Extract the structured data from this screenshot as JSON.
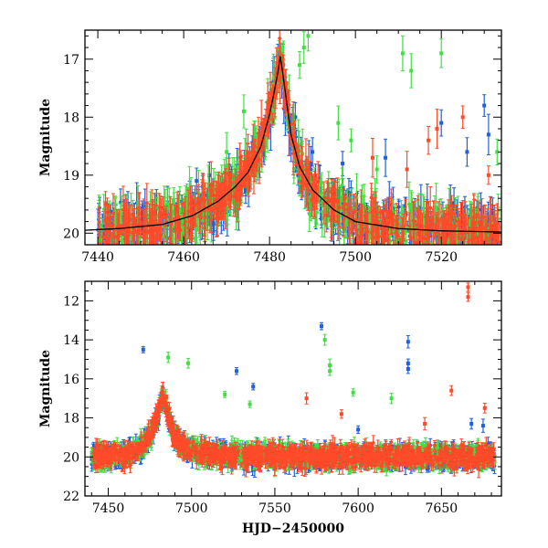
{
  "chart_data": [
    {
      "type": "scatter",
      "title": "",
      "xlabel": "",
      "ylabel": "Magnitude",
      "xlim": [
        7437,
        7534
      ],
      "ylim": [
        20.2,
        16.5
      ],
      "y_inverted": true,
      "grid": false,
      "x_ticks": [
        7440,
        7460,
        7480,
        7500,
        7520
      ],
      "y_ticks": [
        17,
        18,
        19,
        20
      ],
      "colors": {
        "blue": "#1f5fe0",
        "green": "#44dd44",
        "red": "#ff4a2a",
        "model": "#000000"
      },
      "model_curve": {
        "x": [
          7437,
          7445,
          7455,
          7462,
          7468,
          7472,
          7475,
          7478,
          7480,
          7481,
          7482,
          7482.5,
          7483,
          7484,
          7485,
          7487,
          7490,
          7495,
          7500,
          7510,
          7520,
          7534
        ],
        "y": [
          19.95,
          19.92,
          19.85,
          19.7,
          19.45,
          19.2,
          18.95,
          18.5,
          17.95,
          17.6,
          17.2,
          16.95,
          17.2,
          17.75,
          18.3,
          18.85,
          19.25,
          19.6,
          19.8,
          19.92,
          19.96,
          19.98
        ]
      },
      "series": [
        {
          "color": "blue",
          "band": 0.55,
          "outliers": [
            [
              7463,
              19.1
            ],
            [
              7466,
              19.0
            ],
            [
              7486,
              18.0
            ],
            [
              7490,
              18.6
            ],
            [
              7497,
              18.8
            ],
            [
              7507,
              18.7
            ],
            [
              7520,
              18.1
            ],
            [
              7526,
              18.6
            ],
            [
              7530,
              17.8
            ],
            [
              7531,
              18.3
            ]
          ]
        },
        {
          "color": "green",
          "band": 0.6,
          "outliers": [
            [
              7470,
              18.6
            ],
            [
              7474,
              17.9
            ],
            [
              7479,
              18.4
            ],
            [
              7487,
              17.1
            ],
            [
              7488,
              16.8
            ],
            [
              7489,
              16.6
            ],
            [
              7496,
              18.1
            ],
            [
              7499,
              18.4
            ],
            [
              7505,
              18.9
            ],
            [
              7511,
              16.9
            ],
            [
              7513,
              17.2
            ],
            [
              7520,
              16.9
            ],
            [
              7533,
              18.6
            ]
          ]
        },
        {
          "color": "red",
          "band": 0.5,
          "outliers": [
            [
              7504,
              18.7
            ],
            [
              7512,
              18.9
            ],
            [
              7517,
              18.4
            ],
            [
              7519,
              18.2
            ],
            [
              7525,
              18.0
            ],
            [
              7531,
              19.0
            ]
          ]
        }
      ]
    },
    {
      "type": "scatter",
      "title": "",
      "xlabel": "HJD−2450000",
      "ylabel": "Magnitude",
      "xlim": [
        7436,
        7686
      ],
      "ylim": [
        22,
        11
      ],
      "y_inverted": true,
      "grid": false,
      "x_ticks": [
        7450,
        7500,
        7550,
        7600,
        7650
      ],
      "y_ticks": [
        12,
        14,
        16,
        18,
        20,
        22
      ],
      "colors": {
        "blue": "#1f5fe0",
        "green": "#44dd44",
        "red": "#ff4a2a"
      },
      "model_curve": {
        "x": [
          7440,
          7460,
          7470,
          7476,
          7480,
          7482,
          7483,
          7485,
          7488,
          7495,
          7510,
          7550,
          7680
        ],
        "y": [
          20.0,
          19.9,
          19.5,
          18.8,
          17.8,
          17.0,
          16.8,
          17.5,
          18.6,
          19.5,
          19.9,
          20.0,
          20.0
        ]
      },
      "series": [
        {
          "color": "blue",
          "band": 0.8,
          "outliers": [
            [
              7471,
              14.5
            ],
            [
              7527,
              15.6
            ],
            [
              7537,
              16.4
            ],
            [
              7578,
              13.3
            ],
            [
              7630,
              14.1
            ],
            [
              7630,
              15.2
            ],
            [
              7630,
              15.5
            ],
            [
              7675,
              18.4
            ],
            [
              7668,
              18.3
            ],
            [
              7600,
              18.6
            ]
          ]
        },
        {
          "color": "green",
          "band": 0.8,
          "outliers": [
            [
              7486,
              14.9
            ],
            [
              7498,
              15.2
            ],
            [
              7520,
              16.8
            ],
            [
              7580,
              14.0
            ],
            [
              7583,
              15.3
            ],
            [
              7583,
              15.6
            ],
            [
              7597,
              16.7
            ],
            [
              7620,
              17.0
            ],
            [
              7535,
              17.3
            ]
          ]
        },
        {
          "color": "red",
          "band": 0.8,
          "outliers": [
            [
              7666,
              11.3
            ],
            [
              7666,
              11.8
            ],
            [
              7656,
              16.6
            ],
            [
              7676,
              17.5
            ],
            [
              7569,
              17.0
            ],
            [
              7590,
              17.8
            ],
            [
              7640,
              18.3
            ]
          ]
        }
      ]
    }
  ]
}
